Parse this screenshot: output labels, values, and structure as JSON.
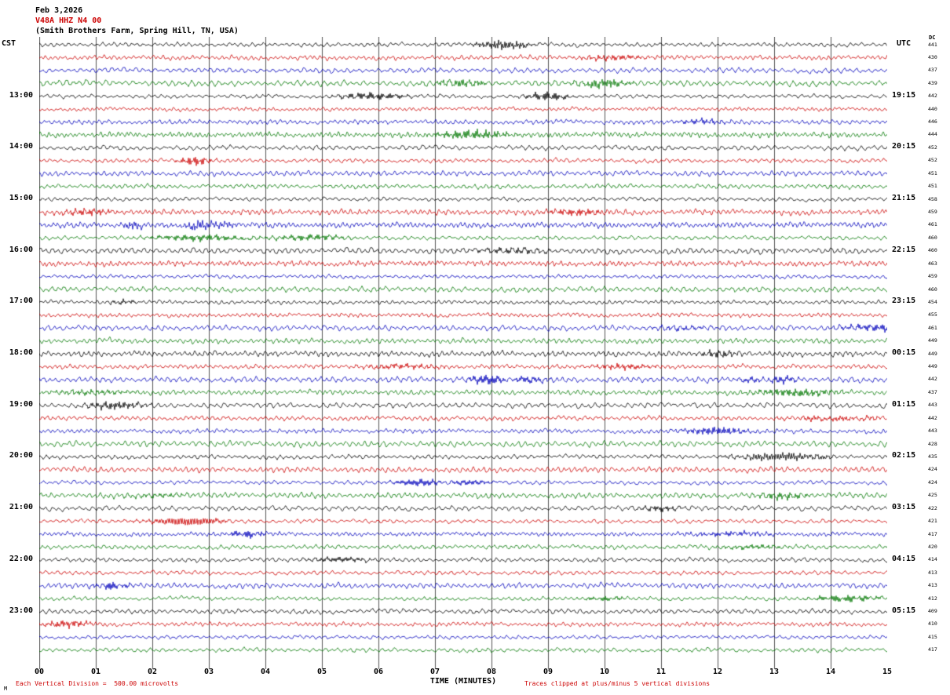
{
  "header": {
    "date": "Feb 3,2026",
    "station": "V48A HHZ N4 00",
    "location": "(Smith Brothers Farm, Spring Hill, TN, USA)"
  },
  "footer": {
    "scale_note": "Each Vertical Division =  500.00 microvolts",
    "clip_note": "Traces clipped at plus/minus 5 vertical divisions",
    "corner_mark": "M"
  },
  "chart_data": {
    "type": "line",
    "title": "Helicorder record V48A HHZ N4 00 — Smith Brothers Farm, Spring Hill, TN, USA — Feb 3,2026",
    "x_label": "TIME (MINUTES)",
    "x_ticks": [
      "00",
      "01",
      "02",
      "03",
      "04",
      "05",
      "06",
      "07",
      "08",
      "09",
      "10",
      "11",
      "12",
      "13",
      "14",
      "15"
    ],
    "x_range_minutes": [
      0,
      15
    ],
    "rows": 48,
    "traces_per_hour": 4,
    "minutes_per_trace": 15,
    "left_timezone": "CST",
    "right_timezone": "UTC",
    "dc_header": "DC",
    "left_hour_labels": [
      "13:00",
      "14:00",
      "15:00",
      "16:00",
      "17:00",
      "18:00",
      "19:00",
      "20:00",
      "21:00",
      "22:00",
      "23:00"
    ],
    "right_hour_labels": [
      "19:15",
      "20:15",
      "21:15",
      "22:15",
      "23:15",
      "00:15",
      "01:15",
      "02:15",
      "03:15",
      "04:15",
      "05:15"
    ],
    "dc_values": [
      441,
      430,
      437,
      439,
      442,
      440,
      446,
      444,
      452,
      452,
      451,
      451,
      458,
      459,
      461,
      460,
      460,
      463,
      459,
      460,
      454,
      455,
      461,
      449,
      449,
      449,
      442,
      437,
      443,
      442,
      443,
      428,
      435,
      424,
      424,
      425,
      422,
      421,
      417,
      420,
      414,
      413,
      413,
      412,
      409,
      410,
      415,
      417
    ],
    "row_colors_cycle": [
      "#000000",
      "#cc0000",
      "#0000bb",
      "#007700"
    ],
    "grid": "vertical minute divisions only",
    "waveform_note": "continuous background microseismic noise, amplitude near one vertical division with occasional small bursts; traces clipped at plus/minus 5 vertical divisions; individual samples not resolvable at this scale (rendered synthetically)"
  }
}
